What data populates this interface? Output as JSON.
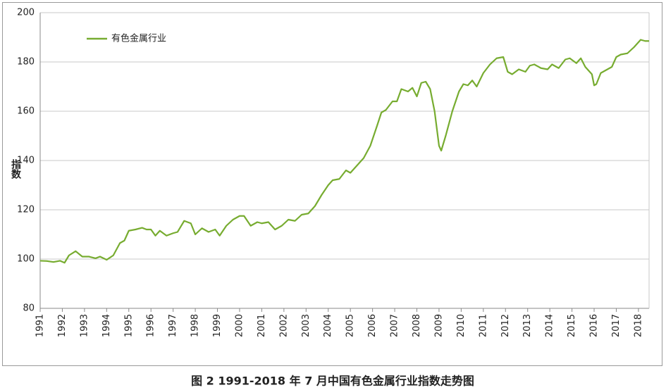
{
  "chart_data": {
    "type": "line",
    "caption": "图 2    1991-2018 年 7 月中国有色金属行业指数走势图",
    "y_label": "指数",
    "xlim": [
      1991,
      2018.48
    ],
    "xticks": [
      1991,
      1992,
      1993,
      1994,
      1995,
      1996,
      1997,
      1998,
      1999,
      2000,
      2001,
      2002,
      2003,
      2004,
      2005,
      2006,
      2007,
      2008,
      2009,
      2010,
      2011,
      2012,
      2013,
      2014,
      2015,
      2016,
      2017,
      2018
    ],
    "ylim": [
      80,
      200
    ],
    "yticks": [
      80,
      100,
      120,
      140,
      160,
      180,
      200
    ],
    "grid": true,
    "legend": "upper left",
    "x": [
      1991.0,
      1991.3,
      1991.6,
      1991.9,
      1992.1,
      1992.3,
      1992.6,
      1992.9,
      1993.2,
      1993.5,
      1993.7,
      1994.0,
      1994.3,
      1994.6,
      1994.8,
      1995.0,
      1995.3,
      1995.6,
      1995.8,
      1996.0,
      1996.2,
      1996.4,
      1996.7,
      1997.0,
      1997.2,
      1997.5,
      1997.8,
      1998.0,
      1998.3,
      1998.6,
      1998.9,
      1999.1,
      1999.4,
      1999.7,
      2000.0,
      2000.2,
      2000.5,
      2000.8,
      2001.0,
      2001.3,
      2001.6,
      2001.9,
      2002.2,
      2002.5,
      2002.8,
      2003.1,
      2003.4,
      2003.7,
      2004.0,
      2004.2,
      2004.5,
      2004.8,
      2005.0,
      2005.3,
      2005.6,
      2005.9,
      2006.2,
      2006.4,
      2006.6,
      2006.9,
      2007.1,
      2007.3,
      2007.6,
      2007.8,
      2008.0,
      2008.2,
      2008.4,
      2008.6,
      2008.8,
      2009.0,
      2009.1,
      2009.3,
      2009.6,
      2009.9,
      2010.1,
      2010.3,
      2010.5,
      2010.7,
      2011.0,
      2011.3,
      2011.6,
      2011.9,
      2012.1,
      2012.3,
      2012.6,
      2012.9,
      2013.1,
      2013.3,
      2013.6,
      2013.9,
      2014.1,
      2014.4,
      2014.7,
      2014.9,
      2015.2,
      2015.4,
      2015.6,
      2015.9,
      2016.0,
      2016.1,
      2016.3,
      2016.6,
      2016.8,
      2017.0,
      2017.2,
      2017.5,
      2017.8,
      2018.1,
      2018.3,
      2018.48
    ],
    "series": [
      {
        "name": "有色金属行业",
        "color": "#77ac30",
        "values": [
          99.3,
          99.2,
          98.8,
          99.3,
          98.5,
          101.5,
          103.2,
          101,
          101,
          100.3,
          101,
          99.7,
          101.5,
          106.5,
          107.5,
          111.5,
          112,
          112.7,
          112,
          112,
          109.5,
          111.5,
          109.5,
          110.5,
          111,
          115.5,
          114.5,
          110,
          112.5,
          111,
          112,
          109.5,
          113.5,
          116,
          117.5,
          117.5,
          113.5,
          115,
          114.5,
          115,
          112,
          113.5,
          116,
          115.5,
          118,
          118.5,
          121.5,
          126,
          130,
          132,
          132.5,
          136,
          135,
          138,
          141,
          146,
          154,
          159.5,
          160.5,
          164,
          164,
          169,
          168,
          169.5,
          166,
          171.5,
          172,
          169,
          160,
          146,
          144,
          150,
          160,
          168,
          171,
          170.5,
          172.5,
          170,
          175.5,
          179,
          181.5,
          182,
          176,
          175,
          177,
          176,
          178.5,
          179,
          177.5,
          177,
          179,
          177.5,
          181,
          181.5,
          179.5,
          181.5,
          178,
          175,
          170.5,
          171,
          175.5,
          177,
          178,
          182,
          183,
          183.5,
          186,
          189,
          188.5,
          188.5
        ]
      }
    ]
  }
}
